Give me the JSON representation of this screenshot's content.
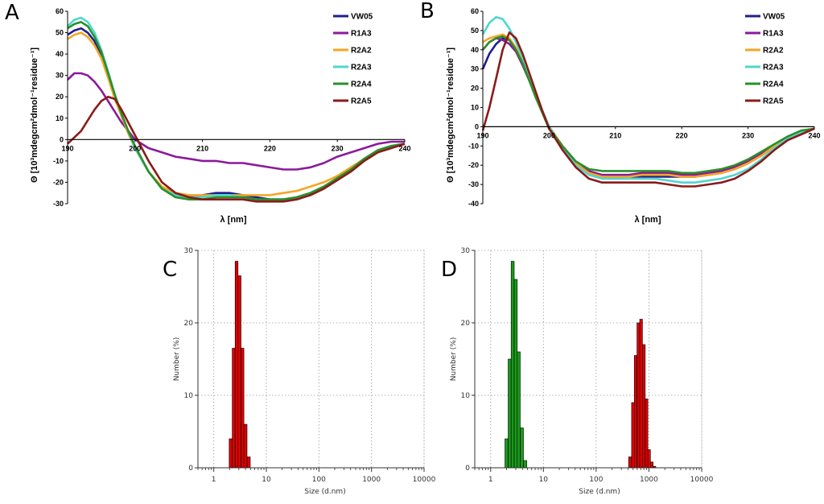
{
  "chart_data": [
    {
      "panel": "A",
      "type": "line",
      "title": "",
      "xlabel": "λ [nm]",
      "ylabel": "Θ [10³mdegcm²dmol⁻¹residue⁻¹]",
      "xlim": [
        190,
        240
      ],
      "ylim": [
        -30,
        60
      ],
      "xticks": [
        190,
        200,
        210,
        220,
        230,
        240
      ],
      "yticks": [
        60,
        50,
        40,
        30,
        20,
        10,
        0,
        -10,
        -20,
        -30
      ],
      "x": [
        190,
        191,
        192,
        193,
        194,
        195,
        196,
        197,
        198,
        199,
        200,
        202,
        204,
        206,
        208,
        210,
        212,
        214,
        216,
        218,
        220,
        222,
        224,
        226,
        228,
        230,
        232,
        234,
        236,
        238,
        240
      ],
      "legend_position": "top-right",
      "series": [
        {
          "name": "VW05",
          "color": "#1f1f8f",
          "values": [
            49,
            51,
            52,
            50,
            46,
            39,
            30,
            20,
            11,
            3,
            -4,
            -15,
            -23,
            -26,
            -27,
            -26,
            -25,
            -25,
            -26,
            -27,
            -28,
            -28,
            -27,
            -25,
            -22,
            -18,
            -14,
            -9,
            -5,
            -3,
            -2
          ]
        },
        {
          "name": "R1A3",
          "color": "#8b1a9b",
          "values": [
            28,
            31,
            31,
            30,
            27,
            23,
            18,
            13,
            8,
            4,
            0,
            -4,
            -6,
            -8,
            -9,
            -10,
            -10,
            -11,
            -11,
            -12,
            -13,
            -14,
            -14,
            -13,
            -11,
            -8,
            -6,
            -4,
            -2,
            -1,
            -1
          ]
        },
        {
          "name": "R2A2",
          "color": "#f5a623",
          "values": [
            47,
            49,
            50,
            48,
            44,
            38,
            29,
            19,
            11,
            3,
            -4,
            -15,
            -22,
            -25,
            -26,
            -26,
            -26,
            -26,
            -26,
            -26,
            -26,
            -25,
            -24,
            -22,
            -20,
            -17,
            -13,
            -9,
            -5,
            -3,
            -2
          ]
        },
        {
          "name": "R2A3",
          "color": "#4fd6cf",
          "values": [
            53,
            56,
            57,
            55,
            50,
            42,
            32,
            21,
            12,
            4,
            -4,
            -15,
            -23,
            -26,
            -27,
            -27,
            -26,
            -26,
            -27,
            -28,
            -28,
            -28,
            -27,
            -25,
            -22,
            -18,
            -14,
            -9,
            -5,
            -3,
            -2
          ]
        },
        {
          "name": "R2A4",
          "color": "#2a8f2a",
          "values": [
            52,
            54,
            55,
            53,
            48,
            41,
            31,
            21,
            12,
            4,
            -3,
            -15,
            -23,
            -27,
            -28,
            -28,
            -27,
            -27,
            -27,
            -28,
            -28,
            -28,
            -27,
            -25,
            -22,
            -18,
            -14,
            -9,
            -5,
            -3,
            -2
          ]
        },
        {
          "name": "R2A5",
          "color": "#8b1a1a",
          "values": [
            -2,
            1,
            4,
            9,
            14,
            18,
            20,
            19,
            14,
            8,
            2,
            -10,
            -20,
            -25,
            -27,
            -28,
            -28,
            -28,
            -28,
            -29,
            -29,
            -29,
            -28,
            -26,
            -23,
            -19,
            -15,
            -10,
            -6,
            -4,
            -2
          ]
        }
      ]
    },
    {
      "panel": "B",
      "type": "line",
      "title": "",
      "xlabel": "λ [nm]",
      "ylabel": "Θ [10³mdegcm²dmol⁻¹residue⁻¹]",
      "xlim": [
        190,
        240
      ],
      "ylim": [
        -40,
        60
      ],
      "xticks": [
        190,
        200,
        210,
        220,
        230,
        240
      ],
      "yticks": [
        60,
        50,
        40,
        30,
        20,
        10,
        0,
        -10,
        -20,
        -30,
        -40
      ],
      "x": [
        190,
        191,
        192,
        193,
        194,
        195,
        196,
        197,
        198,
        199,
        200,
        202,
        204,
        206,
        208,
        210,
        212,
        214,
        216,
        218,
        220,
        222,
        224,
        226,
        228,
        230,
        232,
        234,
        236,
        238,
        240
      ],
      "legend_position": "top-right",
      "series": [
        {
          "name": "VW05",
          "color": "#1f1f8f",
          "values": [
            30,
            38,
            43,
            46,
            45,
            40,
            33,
            25,
            16,
            8,
            0,
            -10,
            -19,
            -24,
            -26,
            -26,
            -26,
            -26,
            -26,
            -26,
            -26,
            -26,
            -25,
            -24,
            -22,
            -19,
            -15,
            -10,
            -6,
            -3,
            -1
          ]
        },
        {
          "name": "R1A3",
          "color": "#8b1a9b",
          "values": [
            40,
            44,
            46,
            45,
            43,
            39,
            32,
            24,
            16,
            8,
            0,
            -10,
            -18,
            -23,
            -25,
            -25,
            -25,
            -24,
            -24,
            -24,
            -25,
            -25,
            -24,
            -23,
            -21,
            -18,
            -14,
            -10,
            -6,
            -3,
            -1
          ]
        },
        {
          "name": "R2A2",
          "color": "#f5a623",
          "values": [
            44,
            46,
            47,
            48,
            46,
            41,
            34,
            25,
            16,
            8,
            0,
            -10,
            -19,
            -24,
            -26,
            -26,
            -26,
            -25,
            -25,
            -25,
            -26,
            -26,
            -25,
            -24,
            -22,
            -19,
            -15,
            -10,
            -6,
            -3,
            -1
          ]
        },
        {
          "name": "R2A3",
          "color": "#4fd6cf",
          "values": [
            48,
            54,
            57,
            56,
            51,
            44,
            36,
            27,
            17,
            8,
            0,
            -11,
            -20,
            -25,
            -27,
            -27,
            -27,
            -27,
            -27,
            -28,
            -29,
            -29,
            -28,
            -27,
            -25,
            -22,
            -17,
            -11,
            -6,
            -3,
            -1
          ]
        },
        {
          "name": "R2A4",
          "color": "#2a8f2a",
          "values": [
            40,
            44,
            46,
            47,
            45,
            40,
            33,
            24,
            15,
            7,
            -1,
            -10,
            -18,
            -22,
            -23,
            -23,
            -23,
            -23,
            -23,
            -23,
            -24,
            -24,
            -23,
            -22,
            -20,
            -17,
            -13,
            -9,
            -5,
            -2,
            -1
          ]
        },
        {
          "name": "R2A5",
          "color": "#8b1a1a",
          "values": [
            -2,
            10,
            25,
            40,
            49,
            46,
            38,
            28,
            18,
            8,
            -1,
            -12,
            -21,
            -27,
            -29,
            -29,
            -29,
            -29,
            -29,
            -30,
            -31,
            -31,
            -30,
            -29,
            -27,
            -23,
            -18,
            -12,
            -7,
            -4,
            -1
          ]
        }
      ]
    },
    {
      "panel": "C",
      "type": "bar",
      "xscale": "log",
      "xlabel": "Size (d.nm)",
      "ylabel": "Number (%)",
      "xlim": [
        0.5,
        10000
      ],
      "ylim": [
        0,
        30
      ],
      "xticks": [
        "1",
        "10",
        "100",
        "1000",
        "10000"
      ],
      "yticks": [
        0,
        10,
        20,
        30
      ],
      "grid": true,
      "series": [
        {
          "name": "peak1",
          "color": "#dd0000",
          "x": [
            2.1,
            2.4,
            2.7,
            3.1,
            3.5,
            4.0,
            4.6
          ],
          "values": [
            4.0,
            16.5,
            28.5,
            26.5,
            16.5,
            6.0,
            1.5
          ]
        }
      ]
    },
    {
      "panel": "D",
      "type": "bar",
      "xscale": "log",
      "xlabel": "Size (d.nm)",
      "ylabel": "Number (%)",
      "xlim": [
        0.5,
        10000
      ],
      "ylim": [
        0,
        30
      ],
      "xticks": [
        "1",
        "10",
        "100",
        "1000",
        "10000"
      ],
      "yticks": [
        0,
        10,
        20,
        30
      ],
      "grid": true,
      "series": [
        {
          "name": "peak1",
          "color": "#1a9a1a",
          "x": [
            2.0,
            2.3,
            2.6,
            3.0,
            3.4,
            3.9,
            4.5
          ],
          "values": [
            4.0,
            15.0,
            28.5,
            26.0,
            16.0,
            5.5,
            1.0
          ]
        },
        {
          "name": "peak2",
          "color": "#dd0000",
          "x": [
            440,
            500,
            560,
            630,
            710,
            800,
            900,
            1010,
            1130,
            1270
          ],
          "values": [
            1.5,
            9.0,
            15.5,
            20.0,
            20.5,
            17.0,
            9.5,
            2.5,
            0.8,
            0.2
          ]
        }
      ]
    }
  ]
}
